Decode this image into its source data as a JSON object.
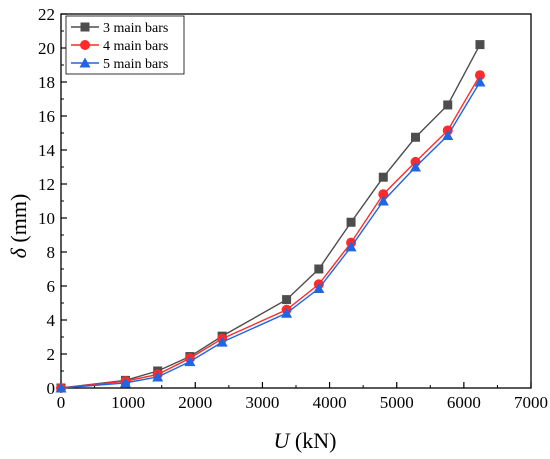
{
  "chart_data": {
    "type": "line",
    "title": "",
    "xlabel": {
      "var": "U",
      "unit": " (kN)"
    },
    "ylabel": {
      "var": "δ",
      "unit": " (mm)"
    },
    "xlim": [
      0,
      7000
    ],
    "ylim": [
      0,
      22
    ],
    "xticks": [
      0,
      1000,
      2000,
      3000,
      4000,
      5000,
      6000,
      7000
    ],
    "yticks": [
      0,
      2,
      4,
      6,
      8,
      10,
      12,
      14,
      16,
      18,
      20,
      22
    ],
    "grid": false,
    "legend_position": "top-left",
    "x": [
      0,
      960,
      1440,
      1920,
      2400,
      3360,
      3840,
      4320,
      4800,
      5280,
      5760,
      6240
    ],
    "series": [
      {
        "name": "3 main bars",
        "color": "#4d4d4d",
        "marker": "square",
        "values": [
          0,
          0.45,
          1.0,
          1.85,
          3.05,
          5.2,
          7.0,
          9.75,
          12.4,
          14.75,
          16.65,
          20.2
        ]
      },
      {
        "name": "4 main bars",
        "color": "#ff2a2a",
        "marker": "circle",
        "values": [
          0,
          0.4,
          0.8,
          1.75,
          2.9,
          4.6,
          6.1,
          8.55,
          11.4,
          13.3,
          15.15,
          18.4
        ]
      },
      {
        "name": "5 main bars",
        "color": "#1f66e0",
        "marker": "triangle",
        "values": [
          0,
          0.3,
          0.65,
          1.55,
          2.7,
          4.4,
          5.85,
          8.3,
          11.0,
          13.0,
          14.85,
          18.0
        ]
      }
    ]
  }
}
